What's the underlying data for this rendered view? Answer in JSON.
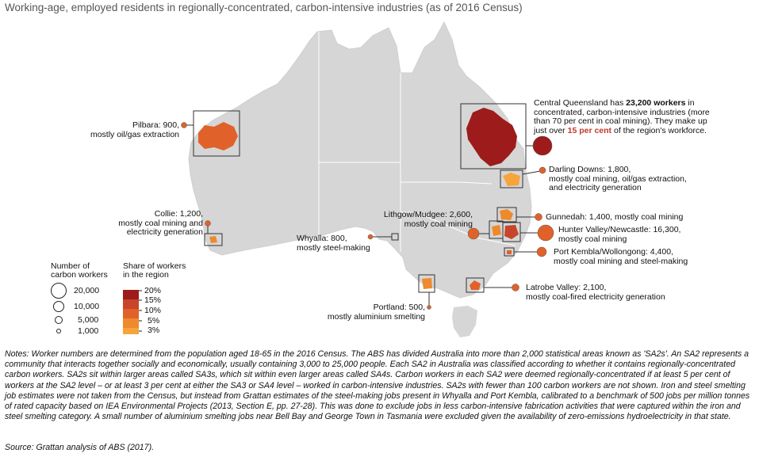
{
  "subtitle": "Working-age, employed residents in regionally-concentrated, carbon-intensive industries (as of 2016 Census)",
  "colors": {
    "land": "#d6d6d6",
    "share_20": "#9e1b1b",
    "share_15": "#c8442a",
    "share_10": "#e0622a",
    "share_5": "#ee8a2d",
    "share_3": "#f5a53c"
  },
  "regions": {
    "pilbara": {
      "line1": "Pilbara: 900,",
      "line2": "mostly oil/gas extraction",
      "workers": 900
    },
    "collie": {
      "line1": "Collie: 1,200,",
      "line2": "mostly coal mining and",
      "line3": "electricity generation",
      "workers": 1200
    },
    "whyalla": {
      "line1": "Whyalla: 800,",
      "line2": "mostly steel-making",
      "workers": 800
    },
    "portland": {
      "line1": "Portland: 500,",
      "line2": "mostly aluminium smelting",
      "workers": 500
    },
    "latrobe": {
      "line1": "Latrobe Valley: 2,100,",
      "line2": "mostly coal-fired electricity generation",
      "workers": 2100
    },
    "lithgow": {
      "line1": "Lithgow/Mudgee: 2,600,",
      "line2": "mostly coal mining",
      "workers": 2600
    },
    "gunnedah": {
      "line1": "Gunnedah: 1,400, mostly coal mining",
      "workers": 1400
    },
    "hunter": {
      "line1": "Hunter Valley/Newcastle: 16,300,",
      "line2": "mostly coal mining",
      "workers": 16300
    },
    "kembla": {
      "line1": "Port Kembla/Wollongong: 4,400,",
      "line2": "mostly coal mining and steel-making",
      "workers": 4400
    },
    "darling": {
      "line1": "Darling Downs: 1,800,",
      "line2": "mostly coal mining, oil/gas extraction,",
      "line3": "and electricity generation",
      "workers": 1800
    },
    "cq": {
      "t1": "Central Queensland has ",
      "t2": "23,200 workers",
      "t3": " in",
      "line2": "concentrated, carbon-intensive industries (more",
      "line3": "than 70 per cent in coal mining). They make up",
      "line4a": "just over ",
      "line4b": "15 per cent",
      "line4c": " of the region's workforce.",
      "workers": 23200
    }
  },
  "legend": {
    "size_title1": "Number of",
    "size_title2": "carbon workers",
    "size_values": [
      "20,000",
      "10,000",
      "5,000",
      "1,000"
    ],
    "share_title1": "Share of workers",
    "share_title2": "in the region",
    "share_values": [
      "20%",
      "15%",
      "10%",
      "5%",
      "3%"
    ]
  },
  "notes": "Notes: Worker numbers are determined from the population aged 18-65 in the 2016 Census. The ABS has divided Australia into more than 2,000 statistical areas known as 'SA2s'. An SA2 represents a community that interacts together socially and economically, usually containing 3,000 to 25,000 people. Each SA2 in Australia was classified according to whether it contains regionally-concentrated carbon workers. SA2s sit within larger areas called SA3s, which sit within even larger areas called SA4s. Carbon workers in each SA2 were deemed regionally-concentrated if at least 5 per cent of workers at the SA2 level – or at least 3 per cent at either the SA3 or SA4 level – worked in carbon-intensive industries. SA2s with fewer than 100 carbon workers are not shown. Iron and steel smelting job estimates were not taken from the Census, but instead from Grattan estimates of the steel-making jobs present in Whyalla and Port Kembla, calibrated to a benchmark of 500 jobs per million tonnes of rated capacity based on IEA Environmental Projects (2013, Section E, pp. 27-28). This was done to exclude jobs in less carbon-intensive fabrication activities that were captured within the iron and steel smelting category. A small number of aluminium smelting jobs near Bell Bay and George Town in Tasmania were excluded given the availability of zero-emissions hydroelectricity in that state.",
  "source": "Source: Grattan analysis of ABS (2017)."
}
